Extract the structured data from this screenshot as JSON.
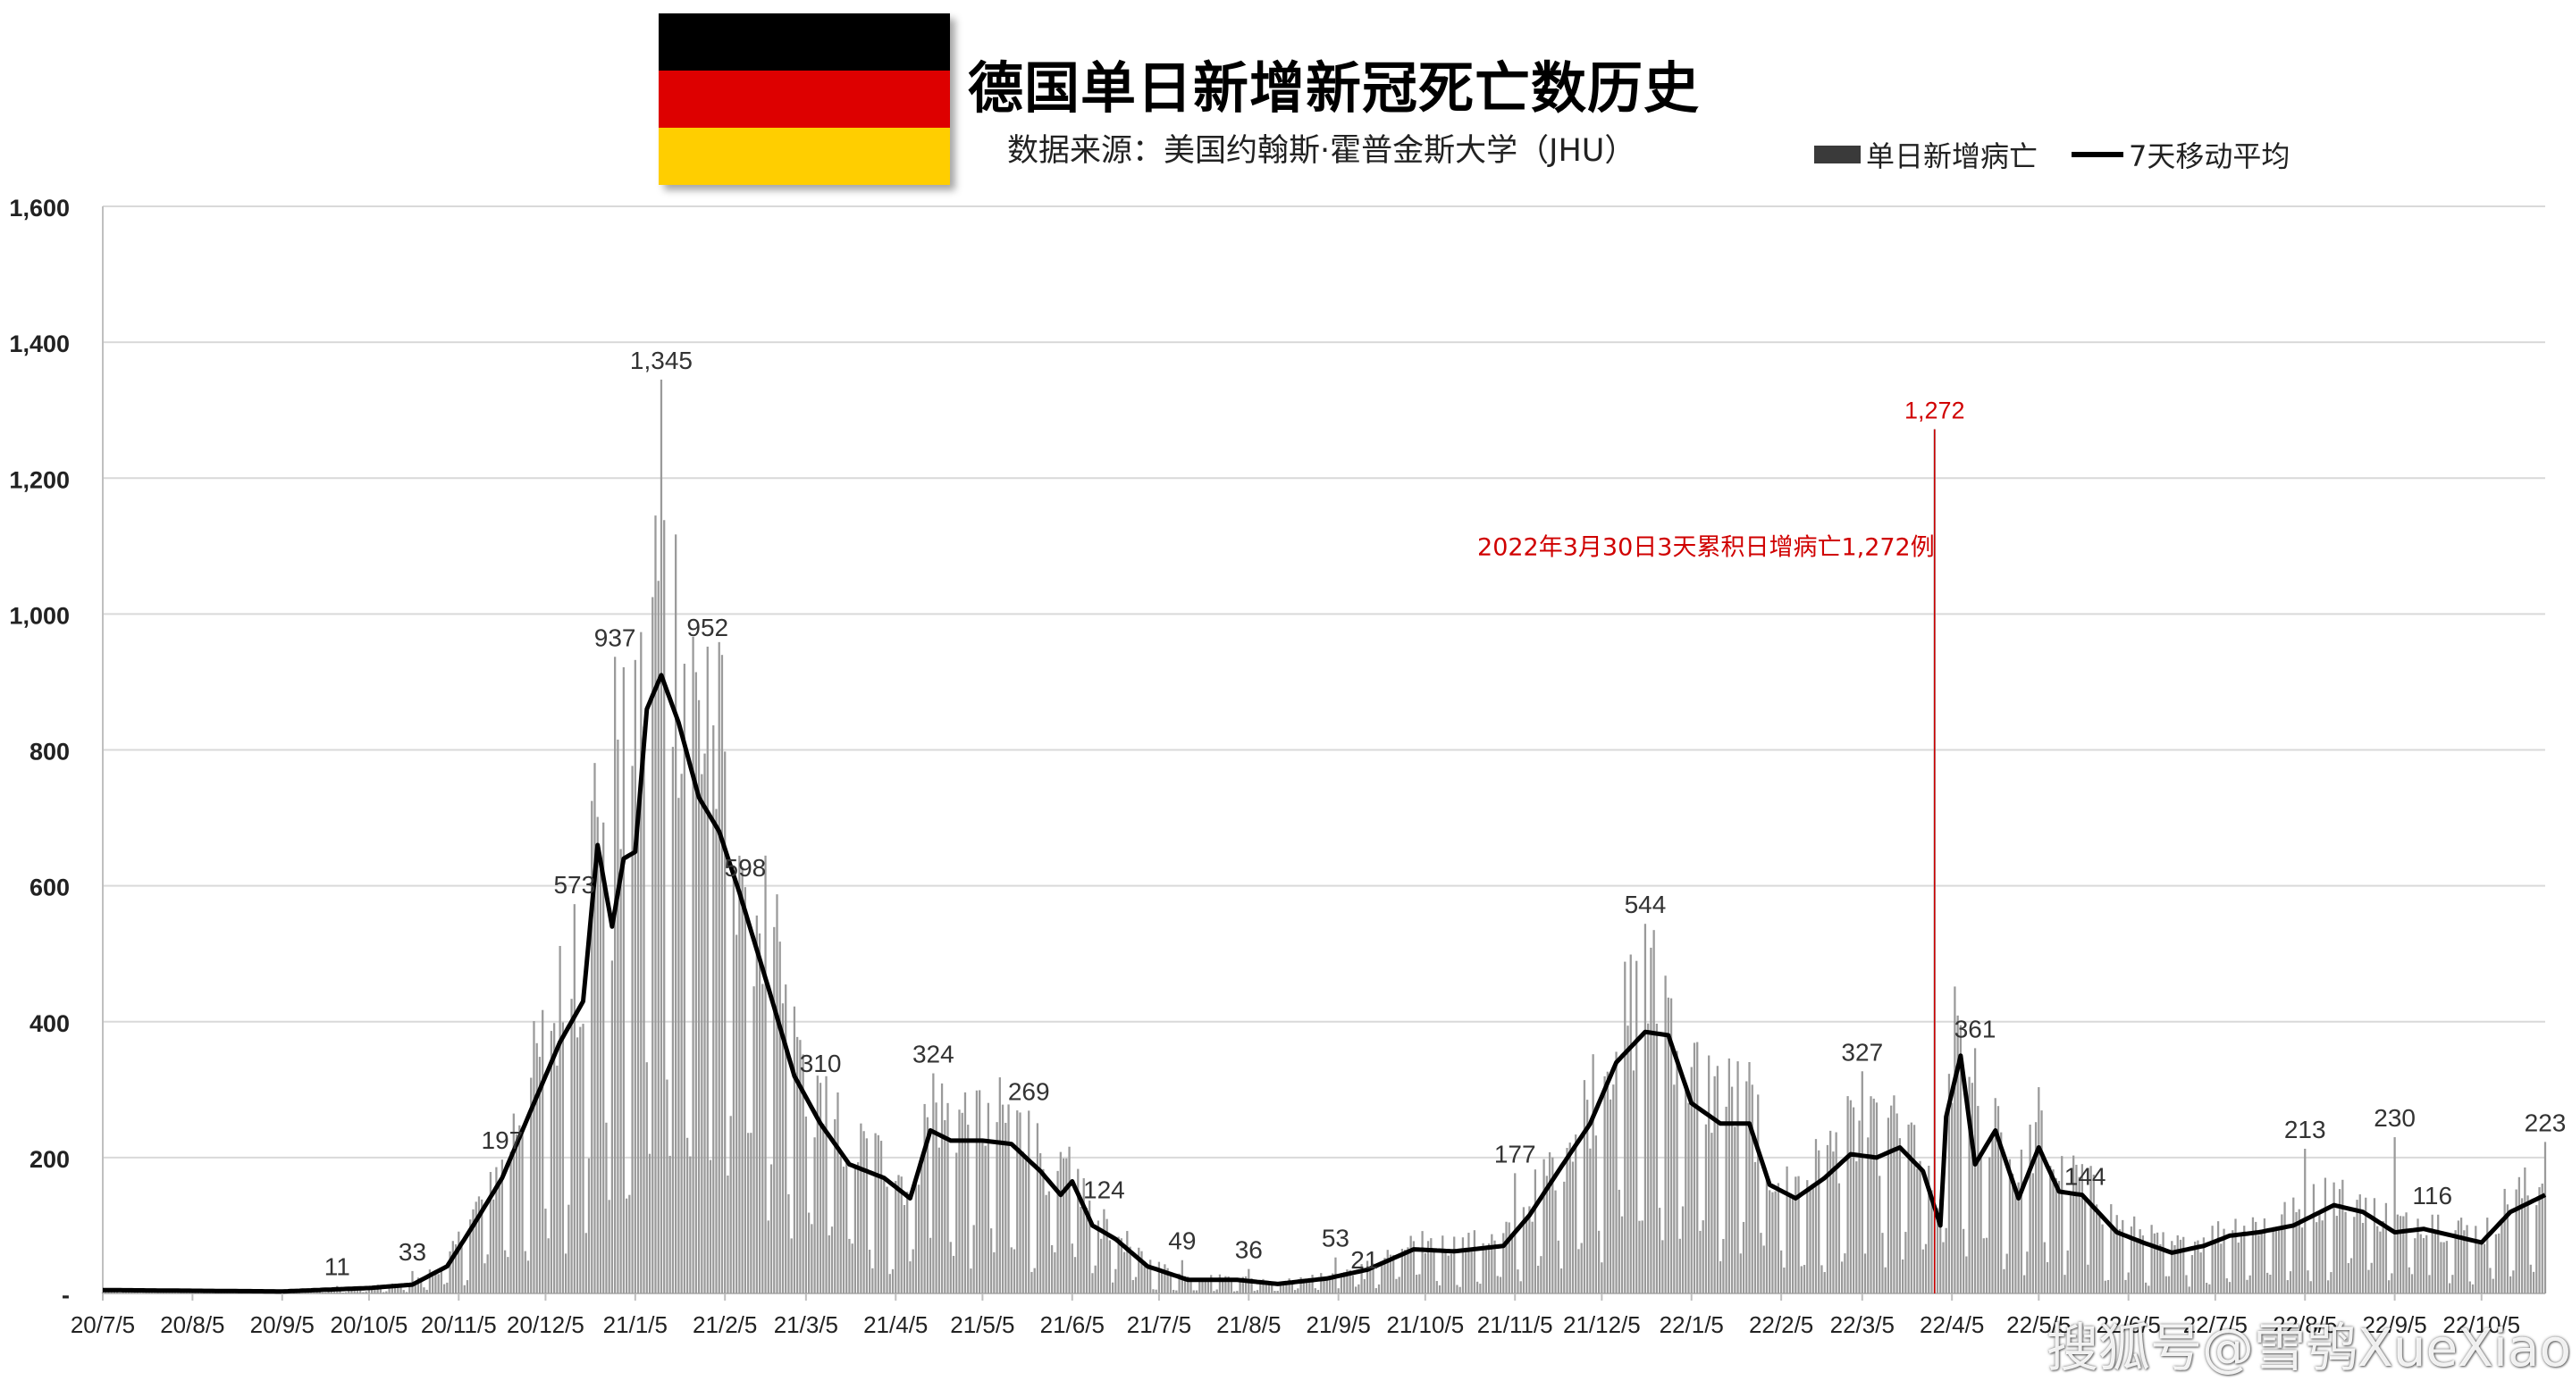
{
  "header": {
    "title": "德国单日新增新冠死亡数历史",
    "source": "数据来源：美国约翰斯·霍普金斯大学（JHU）",
    "legend_bar": "单日新增病亡",
    "legend_line": "7天移动平均"
  },
  "flag_colors": [
    "#000000",
    "#dd0000",
    "#ffce00"
  ],
  "watermark": "搜狐号@雪鸮XueXiao",
  "chart_data": {
    "type": "bar",
    "title": "德国单日新增新冠死亡数历史",
    "subtitle": "数据来源：美国约翰斯·霍普金斯大学（JHU）",
    "xlabel": "",
    "ylabel": "",
    "ylim": [
      0,
      1600
    ],
    "y_ticks": [
      0,
      200,
      400,
      600,
      800,
      1000,
      1200,
      1400,
      1600
    ],
    "y_tick_labels": [
      "-",
      "200",
      "400",
      "600",
      "800",
      "1,000",
      "1,200",
      "1,400",
      "1,600"
    ],
    "grid": true,
    "legend_position": "top-right",
    "bar_color": "#9a9a9a",
    "line_color": "#000000",
    "series_names": [
      "单日新增病亡",
      "7天移动平均"
    ],
    "x_tick_labels": [
      "20/7/5",
      "20/8/5",
      "20/9/5",
      "20/10/5",
      "20/11/5",
      "20/12/5",
      "21/1/5",
      "21/2/5",
      "21/3/5",
      "21/4/5",
      "21/5/5",
      "21/6/5",
      "21/7/5",
      "21/8/5",
      "21/9/5",
      "21/10/5",
      "21/11/5",
      "21/12/5",
      "22/1/5",
      "22/2/5",
      "22/3/5",
      "22/4/5",
      "22/5/5",
      "22/6/5",
      "22/7/5",
      "22/8/5",
      "22/9/5",
      "22/10/5"
    ],
    "x_start": "2020-07-05",
    "x_end": "2022-10-27",
    "moving_average_7d": [
      [
        "2020-07-05",
        5
      ],
      [
        "2020-08-05",
        4
      ],
      [
        "2020-09-05",
        3
      ],
      [
        "2020-10-05",
        8
      ],
      [
        "2020-10-20",
        13
      ],
      [
        "2020-11-01",
        40
      ],
      [
        "2020-11-10",
        100
      ],
      [
        "2020-11-20",
        170
      ],
      [
        "2020-12-01",
        280
      ],
      [
        "2020-12-10",
        370
      ],
      [
        "2020-12-18",
        430
      ],
      [
        "2020-12-23",
        660
      ],
      [
        "2020-12-28",
        540
      ],
      [
        "2021-01-01",
        640
      ],
      [
        "2021-01-05",
        650
      ],
      [
        "2021-01-09",
        860
      ],
      [
        "2021-01-14",
        910
      ],
      [
        "2021-01-20",
        840
      ],
      [
        "2021-01-27",
        730
      ],
      [
        "2021-02-03",
        680
      ],
      [
        "2021-02-10",
        590
      ],
      [
        "2021-02-20",
        450
      ],
      [
        "2021-03-01",
        320
      ],
      [
        "2021-03-10",
        250
      ],
      [
        "2021-03-20",
        190
      ],
      [
        "2021-04-01",
        170
      ],
      [
        "2021-04-10",
        140
      ],
      [
        "2021-04-17",
        240
      ],
      [
        "2021-04-24",
        225
      ],
      [
        "2021-05-05",
        225
      ],
      [
        "2021-05-15",
        220
      ],
      [
        "2021-05-25",
        180
      ],
      [
        "2021-06-01",
        145
      ],
      [
        "2021-06-05",
        165
      ],
      [
        "2021-06-12",
        100
      ],
      [
        "2021-06-20",
        80
      ],
      [
        "2021-07-01",
        40
      ],
      [
        "2021-07-15",
        20
      ],
      [
        "2021-08-01",
        20
      ],
      [
        "2021-08-15",
        14
      ],
      [
        "2021-09-01",
        22
      ],
      [
        "2021-09-15",
        35
      ],
      [
        "2021-10-01",
        65
      ],
      [
        "2021-10-15",
        62
      ],
      [
        "2021-11-01",
        70
      ],
      [
        "2021-11-10",
        115
      ],
      [
        "2021-11-20",
        180
      ],
      [
        "2021-12-01",
        250
      ],
      [
        "2021-12-10",
        340
      ],
      [
        "2021-12-20",
        385
      ],
      [
        "2021-12-28",
        380
      ],
      [
        "2022-01-05",
        280
      ],
      [
        "2022-01-15",
        250
      ],
      [
        "2022-01-25",
        250
      ],
      [
        "2022-02-01",
        160
      ],
      [
        "2022-02-10",
        140
      ],
      [
        "2022-02-20",
        170
      ],
      [
        "2022-03-01",
        205
      ],
      [
        "2022-03-10",
        200
      ],
      [
        "2022-03-18",
        215
      ],
      [
        "2022-03-26",
        180
      ],
      [
        "2022-04-01",
        100
      ],
      [
        "2022-04-03",
        260
      ],
      [
        "2022-04-08",
        350
      ],
      [
        "2022-04-13",
        190
      ],
      [
        "2022-04-20",
        240
      ],
      [
        "2022-04-28",
        140
      ],
      [
        "2022-05-05",
        215
      ],
      [
        "2022-05-12",
        150
      ],
      [
        "2022-05-20",
        145
      ],
      [
        "2022-06-01",
        90
      ],
      [
        "2022-06-10",
        75
      ],
      [
        "2022-06-20",
        60
      ],
      [
        "2022-07-01",
        70
      ],
      [
        "2022-07-10",
        85
      ],
      [
        "2022-07-20",
        90
      ],
      [
        "2022-08-01",
        100
      ],
      [
        "2022-08-15",
        130
      ],
      [
        "2022-08-25",
        120
      ],
      [
        "2022-09-05",
        90
      ],
      [
        "2022-09-15",
        95
      ],
      [
        "2022-09-25",
        85
      ],
      [
        "2022-10-05",
        75
      ],
      [
        "2022-10-15",
        120
      ],
      [
        "2022-10-27",
        145
      ]
    ],
    "data_labels": [
      {
        "date": "2020-09-24",
        "value": 11,
        "label": "11"
      },
      {
        "date": "2020-10-20",
        "value": 33,
        "label": "33"
      },
      {
        "date": "2020-11-20",
        "value": 197,
        "label": "197"
      },
      {
        "date": "2020-12-15",
        "value": 573,
        "label": "573"
      },
      {
        "date": "2020-12-29",
        "value": 937,
        "label": "937"
      },
      {
        "date": "2021-01-14",
        "value": 1345,
        "label": "1,345"
      },
      {
        "date": "2021-01-30",
        "value": 952,
        "label": "952"
      },
      {
        "date": "2021-02-12",
        "value": 598,
        "label": "598"
      },
      {
        "date": "2021-03-10",
        "value": 310,
        "label": "310"
      },
      {
        "date": "2021-04-18",
        "value": 324,
        "label": "324"
      },
      {
        "date": "2021-05-21",
        "value": 269,
        "label": "269"
      },
      {
        "date": "2021-06-16",
        "value": 124,
        "label": "124"
      },
      {
        "date": "2021-07-13",
        "value": 49,
        "label": "49"
      },
      {
        "date": "2021-08-05",
        "value": 36,
        "label": "36"
      },
      {
        "date": "2021-09-04",
        "value": 53,
        "label": "53"
      },
      {
        "date": "2021-09-14",
        "value": 21,
        "label": "21"
      },
      {
        "date": "2021-11-05",
        "value": 177,
        "label": "177"
      },
      {
        "date": "2021-12-20",
        "value": 544,
        "label": "544"
      },
      {
        "date": "2022-03-05",
        "value": 327,
        "label": "327"
      },
      {
        "date": "2022-04-13",
        "value": 361,
        "label": "361"
      },
      {
        "date": "2022-05-21",
        "value": 144,
        "label": "144"
      },
      {
        "date": "2022-08-05",
        "value": 213,
        "label": "213"
      },
      {
        "date": "2022-09-05",
        "value": 230,
        "label": "230"
      },
      {
        "date": "2022-09-18",
        "value": 116,
        "label": "116"
      },
      {
        "date": "2022-10-27",
        "value": 223,
        "label": "223"
      }
    ],
    "annotation": {
      "date": "2022-03-30",
      "value": 1272,
      "label": "1,272",
      "text": "2022年3月30日3天累积日增病亡1,272例",
      "color": "#d00000"
    }
  }
}
